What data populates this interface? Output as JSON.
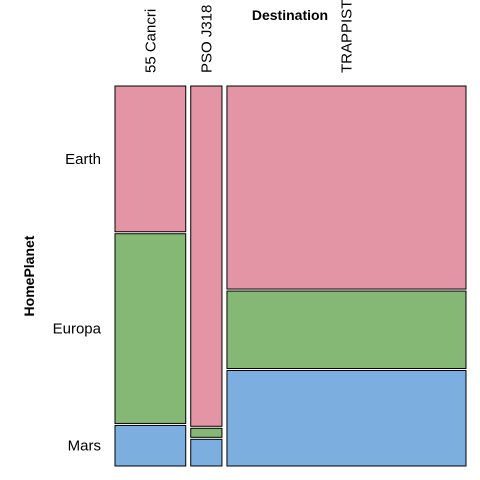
{
  "chart_data": {
    "type": "mosaic",
    "title": "",
    "xlabel": "Destination",
    "ylabel": "HomePlanet",
    "x_categories": [
      "55 Cancri",
      "PSO J318",
      "TRAPPIST"
    ],
    "x_widths": [
      0.1867,
      0.0824,
      0.6309
    ],
    "y_categories": [
      "Earth",
      "Europa",
      "Mars"
    ],
    "series": [
      {
        "name": "Earth",
        "color": "#e495a5",
        "values": [
          0.388,
          0.905,
          0.54
        ]
      },
      {
        "name": "Europa",
        "color": "#86b875",
        "values": [
          0.505,
          0.024,
          0.206
        ]
      },
      {
        "name": "Mars",
        "color": "#7daee0",
        "values": [
          0.108,
          0.071,
          0.254
        ]
      }
    ],
    "y_tick_labels": [
      "Earth",
      "Europa",
      "Mars"
    ]
  }
}
